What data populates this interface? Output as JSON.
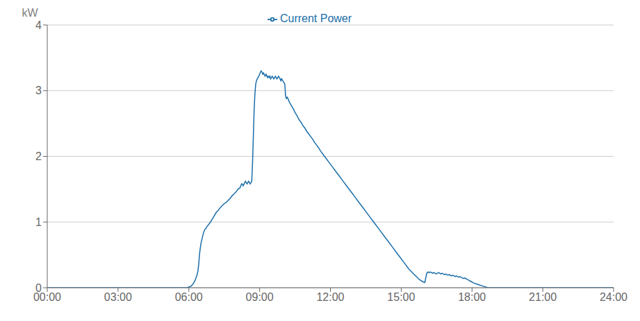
{
  "chart_data": {
    "type": "line",
    "y_label": "kW",
    "legend": "top",
    "grid": "y",
    "xlim": [
      0,
      1440
    ],
    "ylim": [
      0,
      4
    ],
    "yticks": [
      0,
      1,
      2,
      3,
      4
    ],
    "xticks": [
      {
        "value": 0,
        "label": "00:00"
      },
      {
        "value": 180,
        "label": "03:00"
      },
      {
        "value": 360,
        "label": "06:00"
      },
      {
        "value": 540,
        "label": "09:00"
      },
      {
        "value": 720,
        "label": "12:00"
      },
      {
        "value": 900,
        "label": "15:00"
      },
      {
        "value": 1080,
        "label": "18:00"
      },
      {
        "value": 1260,
        "label": "21:00"
      },
      {
        "value": 1440,
        "label": "24:00"
      }
    ],
    "x": [
      0,
      300,
      355,
      360,
      365,
      368,
      371,
      374,
      377,
      380,
      383,
      385,
      387,
      389,
      391,
      393,
      395,
      397,
      400,
      403,
      406,
      410,
      415,
      420,
      425,
      430,
      435,
      440,
      445,
      450,
      455,
      460,
      465,
      470,
      475,
      480,
      485,
      490,
      492,
      494,
      496,
      498,
      500,
      502,
      504,
      506,
      508,
      510,
      512,
      514,
      516,
      518,
      520,
      522,
      524,
      526,
      528,
      530,
      532,
      534,
      536,
      538,
      540,
      542,
      544,
      546,
      548,
      550,
      552,
      554,
      556,
      558,
      560,
      562,
      564,
      566,
      568,
      570,
      572,
      574,
      576,
      578,
      580,
      582,
      584,
      586,
      588,
      590,
      592,
      594,
      596,
      598,
      600,
      602,
      604,
      606,
      608,
      610,
      612,
      614,
      616,
      618,
      620,
      622,
      625,
      630,
      635,
      640,
      645,
      650,
      655,
      660,
      665,
      670,
      675,
      680,
      685,
      690,
      695,
      700,
      705,
      710,
      715,
      720,
      725,
      730,
      735,
      740,
      745,
      750,
      755,
      760,
      765,
      770,
      775,
      780,
      785,
      790,
      795,
      800,
      805,
      810,
      815,
      820,
      825,
      830,
      835,
      840,
      845,
      850,
      855,
      860,
      865,
      870,
      875,
      880,
      885,
      890,
      895,
      900,
      905,
      910,
      915,
      920,
      925,
      930,
      935,
      940,
      945,
      950,
      955,
      960,
      965,
      968,
      971,
      974,
      977,
      980,
      983,
      986,
      989,
      992,
      995,
      998,
      1001,
      1004,
      1007,
      1010,
      1013,
      1016,
      1019,
      1022,
      1025,
      1028,
      1031,
      1034,
      1037,
      1040,
      1043,
      1046,
      1049,
      1052,
      1055,
      1058,
      1061,
      1064,
      1067,
      1070,
      1073,
      1076,
      1079,
      1082,
      1085,
      1090,
      1095,
      1100,
      1105,
      1110,
      1115,
      1120,
      1200,
      1260,
      1320,
      1380,
      1440
    ],
    "series": [
      {
        "name": "Current Power",
        "color": "#1a6eaa",
        "values": [
          0.0,
          0.0,
          0.0,
          0.01,
          0.02,
          0.04,
          0.06,
          0.09,
          0.13,
          0.18,
          0.25,
          0.35,
          0.5,
          0.6,
          0.68,
          0.73,
          0.78,
          0.83,
          0.88,
          0.9,
          0.93,
          0.96,
          1.0,
          1.05,
          1.1,
          1.15,
          1.18,
          1.22,
          1.25,
          1.28,
          1.3,
          1.33,
          1.36,
          1.4,
          1.43,
          1.46,
          1.5,
          1.52,
          1.55,
          1.58,
          1.58,
          1.55,
          1.57,
          1.6,
          1.62,
          1.6,
          1.58,
          1.6,
          1.62,
          1.6,
          1.58,
          1.6,
          1.62,
          1.9,
          2.3,
          2.7,
          2.95,
          3.1,
          3.15,
          3.18,
          3.2,
          3.22,
          3.25,
          3.28,
          3.3,
          3.28,
          3.25,
          3.27,
          3.24,
          3.22,
          3.25,
          3.23,
          3.2,
          3.22,
          3.2,
          3.22,
          3.18,
          3.2,
          3.22,
          3.2,
          3.18,
          3.2,
          3.22,
          3.2,
          3.18,
          3.2,
          3.22,
          3.2,
          3.18,
          3.15,
          3.18,
          3.16,
          3.14,
          3.12,
          3.1,
          2.92,
          2.88,
          2.9,
          2.88,
          2.85,
          2.82,
          2.8,
          2.78,
          2.76,
          2.73,
          2.67,
          2.62,
          2.56,
          2.52,
          2.47,
          2.43,
          2.38,
          2.34,
          2.3,
          2.26,
          2.21,
          2.17,
          2.13,
          2.08,
          2.04,
          2.0,
          1.96,
          1.92,
          1.88,
          1.84,
          1.8,
          1.76,
          1.72,
          1.68,
          1.64,
          1.6,
          1.56,
          1.52,
          1.48,
          1.44,
          1.4,
          1.36,
          1.32,
          1.28,
          1.24,
          1.2,
          1.16,
          1.12,
          1.08,
          1.04,
          1.0,
          0.96,
          0.92,
          0.88,
          0.84,
          0.8,
          0.76,
          0.72,
          0.68,
          0.64,
          0.6,
          0.56,
          0.52,
          0.48,
          0.44,
          0.4,
          0.36,
          0.32,
          0.28,
          0.25,
          0.22,
          0.19,
          0.16,
          0.13,
          0.11,
          0.09,
          0.08,
          0.22,
          0.24,
          0.23,
          0.24,
          0.23,
          0.22,
          0.23,
          0.22,
          0.21,
          0.22,
          0.23,
          0.22,
          0.21,
          0.22,
          0.21,
          0.2,
          0.21,
          0.2,
          0.19,
          0.2,
          0.19,
          0.18,
          0.19,
          0.18,
          0.17,
          0.18,
          0.17,
          0.16,
          0.17,
          0.16,
          0.15,
          0.14,
          0.15,
          0.14,
          0.13,
          0.12,
          0.11,
          0.1,
          0.09,
          0.08,
          0.07,
          0.06,
          0.05,
          0.04,
          0.03,
          0.02,
          0.01,
          0.0,
          0.0,
          0.0,
          0.0,
          0.0,
          0.0
        ]
      }
    ]
  }
}
